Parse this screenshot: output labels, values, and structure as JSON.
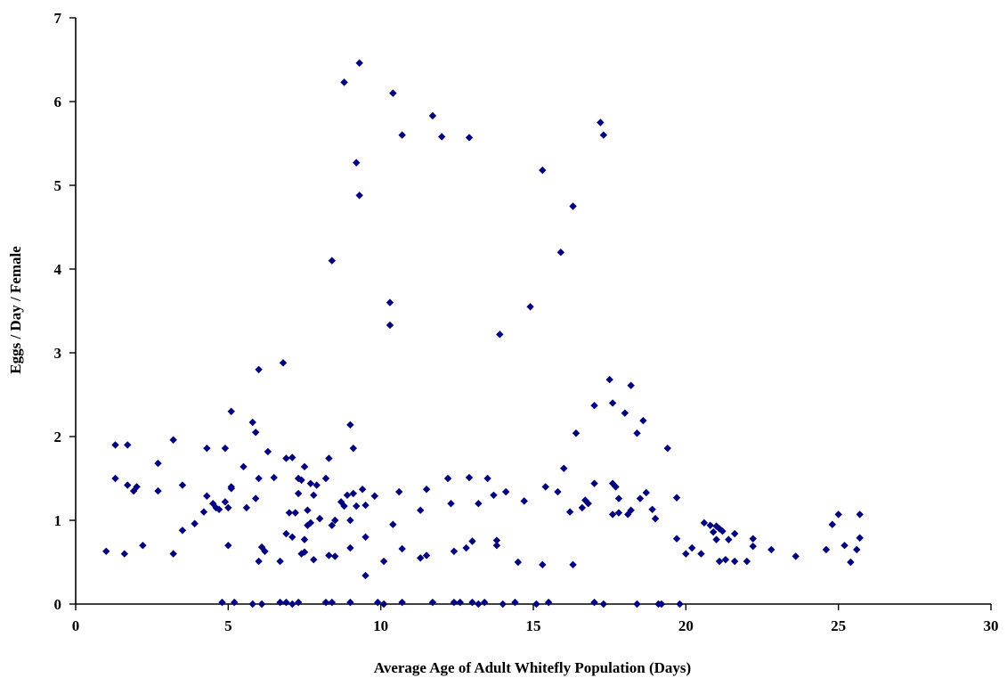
{
  "chart_data": {
    "type": "scatter",
    "title": "",
    "xlabel": "Average Age of Adult Whitefly Population (Days)",
    "ylabel": "Eggs / Day / Female",
    "xlim": [
      0,
      30
    ],
    "ylim": [
      0,
      7
    ],
    "xticks": [
      0,
      5,
      10,
      15,
      20,
      25,
      30
    ],
    "yticks": [
      0,
      1,
      2,
      3,
      4,
      5,
      6,
      7
    ],
    "grid": false,
    "legend": "none",
    "marker": "diamond",
    "marker_color": "#000080",
    "points": [
      [
        1.0,
        0.63
      ],
      [
        1.3,
        1.5
      ],
      [
        1.3,
        1.9
      ],
      [
        1.6,
        0.6
      ],
      [
        1.7,
        1.9
      ],
      [
        1.7,
        1.42
      ],
      [
        1.9,
        1.35
      ],
      [
        2.0,
        1.4
      ],
      [
        2.2,
        0.7
      ],
      [
        2.7,
        1.68
      ],
      [
        2.7,
        1.35
      ],
      [
        3.2,
        1.96
      ],
      [
        3.2,
        0.6
      ],
      [
        3.5,
        1.42
      ],
      [
        3.5,
        0.88
      ],
      [
        3.9,
        0.96
      ],
      [
        4.2,
        1.1
      ],
      [
        4.3,
        1.86
      ],
      [
        4.3,
        1.29
      ],
      [
        4.5,
        1.2
      ],
      [
        4.6,
        1.15
      ],
      [
        4.7,
        1.13
      ],
      [
        4.8,
        0.02
      ],
      [
        4.9,
        1.22
      ],
      [
        4.9,
        1.86
      ],
      [
        5.0,
        1.15
      ],
      [
        5.0,
        0.7
      ],
      [
        5.1,
        2.3
      ],
      [
        5.1,
        1.38
      ],
      [
        5.1,
        1.4
      ],
      [
        5.2,
        0.02
      ],
      [
        5.5,
        1.64
      ],
      [
        5.6,
        1.15
      ],
      [
        5.8,
        2.17
      ],
      [
        5.8,
        0.0
      ],
      [
        5.9,
        2.05
      ],
      [
        5.9,
        1.26
      ],
      [
        6.0,
        1.5
      ],
      [
        6.0,
        0.51
      ],
      [
        6.0,
        2.8
      ],
      [
        6.1,
        0.68
      ],
      [
        6.1,
        0.0
      ],
      [
        6.2,
        0.63
      ],
      [
        6.3,
        1.82
      ],
      [
        6.5,
        1.51
      ],
      [
        6.7,
        0.51
      ],
      [
        6.7,
        0.02
      ],
      [
        6.8,
        2.88
      ],
      [
        6.9,
        0.84
      ],
      [
        6.9,
        1.74
      ],
      [
        6.9,
        0.02
      ],
      [
        7.0,
        1.09
      ],
      [
        7.1,
        1.75
      ],
      [
        7.1,
        0.8
      ],
      [
        7.1,
        0.0
      ],
      [
        7.2,
        1.09
      ],
      [
        7.3,
        1.5
      ],
      [
        7.3,
        1.32
      ],
      [
        7.3,
        0.02
      ],
      [
        7.4,
        1.48
      ],
      [
        7.4,
        0.6
      ],
      [
        7.5,
        1.64
      ],
      [
        7.5,
        0.77
      ],
      [
        7.5,
        0.62
      ],
      [
        7.6,
        0.94
      ],
      [
        7.6,
        1.12
      ],
      [
        7.7,
        1.44
      ],
      [
        7.7,
        0.97
      ],
      [
        7.8,
        1.3
      ],
      [
        7.8,
        0.53
      ],
      [
        7.9,
        1.42
      ],
      [
        8.0,
        1.02
      ],
      [
        8.2,
        1.5
      ],
      [
        8.2,
        0.02
      ],
      [
        8.3,
        1.74
      ],
      [
        8.3,
        0.58
      ],
      [
        8.4,
        0.94
      ],
      [
        8.4,
        4.1
      ],
      [
        8.4,
        0.02
      ],
      [
        8.5,
        0.57
      ],
      [
        8.5,
        1.0
      ],
      [
        8.7,
        1.22
      ],
      [
        8.8,
        1.17
      ],
      [
        8.8,
        6.23
      ],
      [
        8.9,
        1.3
      ],
      [
        9.0,
        2.14
      ],
      [
        9.0,
        0.02
      ],
      [
        9.0,
        1.0
      ],
      [
        9.0,
        0.67
      ],
      [
        9.1,
        1.86
      ],
      [
        9.1,
        1.32
      ],
      [
        9.2,
        5.27
      ],
      [
        9.2,
        1.17
      ],
      [
        9.3,
        4.88
      ],
      [
        9.3,
        6.46
      ],
      [
        9.4,
        1.37
      ],
      [
        9.5,
        1.18
      ],
      [
        9.5,
        0.8
      ],
      [
        9.5,
        0.34
      ],
      [
        9.8,
        1.29
      ],
      [
        9.9,
        0.02
      ],
      [
        10.1,
        0.51
      ],
      [
        10.1,
        0.0
      ],
      [
        10.3,
        3.33
      ],
      [
        10.3,
        3.6
      ],
      [
        10.4,
        0.95
      ],
      [
        10.4,
        6.1
      ],
      [
        10.6,
        1.34
      ],
      [
        10.7,
        5.6
      ],
      [
        10.7,
        0.66
      ],
      [
        10.7,
        0.02
      ],
      [
        11.3,
        1.12
      ],
      [
        11.3,
        0.55
      ],
      [
        11.5,
        1.37
      ],
      [
        11.5,
        0.58
      ],
      [
        11.7,
        5.83
      ],
      [
        11.7,
        0.02
      ],
      [
        12.0,
        5.58
      ],
      [
        12.2,
        1.5
      ],
      [
        12.3,
        1.2
      ],
      [
        12.4,
        0.63
      ],
      [
        12.4,
        0.02
      ],
      [
        12.6,
        0.02
      ],
      [
        12.8,
        0.67
      ],
      [
        12.9,
        5.57
      ],
      [
        12.9,
        1.51
      ],
      [
        13.0,
        0.75
      ],
      [
        13.0,
        0.02
      ],
      [
        13.2,
        1.2
      ],
      [
        13.2,
        0.0
      ],
      [
        13.4,
        0.02
      ],
      [
        13.5,
        1.5
      ],
      [
        13.7,
        1.3
      ],
      [
        13.8,
        0.76
      ],
      [
        13.8,
        0.7
      ],
      [
        13.9,
        3.22
      ],
      [
        14.0,
        0.0
      ],
      [
        14.1,
        1.34
      ],
      [
        14.4,
        0.02
      ],
      [
        14.5,
        0.5
      ],
      [
        14.7,
        1.23
      ],
      [
        14.9,
        3.55
      ],
      [
        15.1,
        0.0
      ],
      [
        15.3,
        0.47
      ],
      [
        15.3,
        5.18
      ],
      [
        15.4,
        1.4
      ],
      [
        15.5,
        0.02
      ],
      [
        15.8,
        1.34
      ],
      [
        15.9,
        4.2
      ],
      [
        16.0,
        1.62
      ],
      [
        16.2,
        1.1
      ],
      [
        16.3,
        4.75
      ],
      [
        16.3,
        0.47
      ],
      [
        16.4,
        2.04
      ],
      [
        16.6,
        1.15
      ],
      [
        16.7,
        1.24
      ],
      [
        16.8,
        1.2
      ],
      [
        17.0,
        1.44
      ],
      [
        17.0,
        2.37
      ],
      [
        17.0,
        0.02
      ],
      [
        17.2,
        5.75
      ],
      [
        17.3,
        5.6
      ],
      [
        17.3,
        0.0
      ],
      [
        17.5,
        2.68
      ],
      [
        17.6,
        2.4
      ],
      [
        17.6,
        1.07
      ],
      [
        17.6,
        1.44
      ],
      [
        17.7,
        1.4
      ],
      [
        17.8,
        1.09
      ],
      [
        17.8,
        1.26
      ],
      [
        18.0,
        2.28
      ],
      [
        18.1,
        1.07
      ],
      [
        18.2,
        2.61
      ],
      [
        18.2,
        1.12
      ],
      [
        18.4,
        2.04
      ],
      [
        18.4,
        0.0
      ],
      [
        18.5,
        1.26
      ],
      [
        18.6,
        2.19
      ],
      [
        18.7,
        1.33
      ],
      [
        18.9,
        1.13
      ],
      [
        19.0,
        1.02
      ],
      [
        19.1,
        0.0
      ],
      [
        19.2,
        0.0
      ],
      [
        19.4,
        1.86
      ],
      [
        19.7,
        0.78
      ],
      [
        19.7,
        1.27
      ],
      [
        19.8,
        0.0
      ],
      [
        20.0,
        0.6
      ],
      [
        20.2,
        0.67
      ],
      [
        20.5,
        0.6
      ],
      [
        20.6,
        0.97
      ],
      [
        20.8,
        0.94
      ],
      [
        20.9,
        0.86
      ],
      [
        21.0,
        0.93
      ],
      [
        21.0,
        0.77
      ],
      [
        21.1,
        0.9
      ],
      [
        21.1,
        0.51
      ],
      [
        21.2,
        0.87
      ],
      [
        21.3,
        0.53
      ],
      [
        21.4,
        0.77
      ],
      [
        21.6,
        0.84
      ],
      [
        21.6,
        0.51
      ],
      [
        22.0,
        0.51
      ],
      [
        22.2,
        0.69
      ],
      [
        22.2,
        0.78
      ],
      [
        22.8,
        0.65
      ],
      [
        23.6,
        0.57
      ],
      [
        24.6,
        0.65
      ],
      [
        24.8,
        0.95
      ],
      [
        25.0,
        1.07
      ],
      [
        25.2,
        0.7
      ],
      [
        25.4,
        0.5
      ],
      [
        25.6,
        0.65
      ],
      [
        25.7,
        0.79
      ],
      [
        25.7,
        1.07
      ]
    ]
  }
}
